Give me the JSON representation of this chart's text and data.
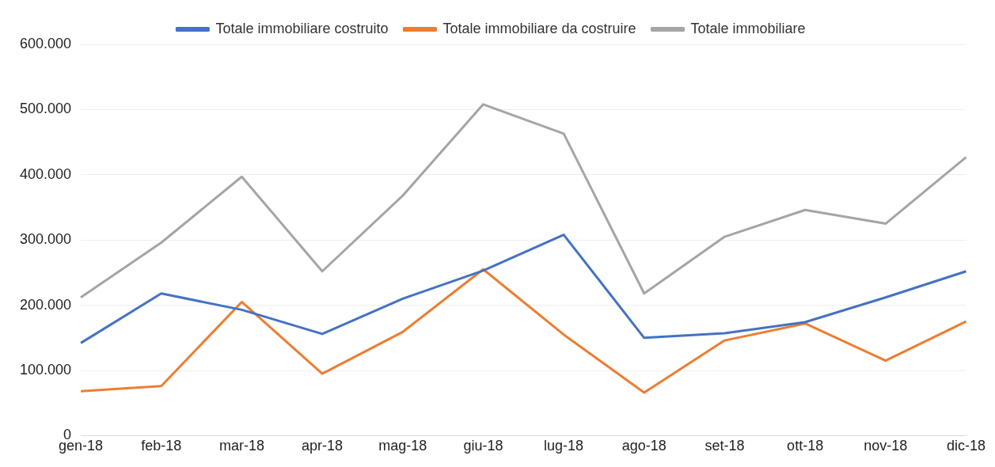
{
  "chart_data": {
    "type": "line",
    "categories": [
      "gen-18",
      "feb-18",
      "mar-18",
      "apr-18",
      "mag-18",
      "giu-18",
      "lug-18",
      "ago-18",
      "set-18",
      "ott-18",
      "nov-18",
      "dic-18"
    ],
    "series": [
      {
        "name": "Totale immobiliare costruito",
        "color": "#4472c4",
        "values": [
          142000,
          218000,
          193000,
          156000,
          210000,
          253000,
          308000,
          150000,
          157000,
          174000,
          212000,
          252000
        ]
      },
      {
        "name": "Totale immobiliare da costruire",
        "color": "#ed7d31",
        "values": [
          68000,
          76000,
          205000,
          95000,
          159000,
          255000,
          155000,
          66000,
          146000,
          172000,
          115000,
          175000
        ]
      },
      {
        "name": "Totale immobiliare",
        "color": "#a5a5a5",
        "values": [
          212000,
          296000,
          397000,
          252000,
          368000,
          508000,
          463000,
          218000,
          305000,
          346000,
          325000,
          427000
        ]
      }
    ],
    "ylim": [
      0,
      600000
    ],
    "yticks": [
      {
        "value": 0,
        "label": "0"
      },
      {
        "value": 100000,
        "label": "100.000"
      },
      {
        "value": 200000,
        "label": "200.000"
      },
      {
        "value": 300000,
        "label": "300.000"
      },
      {
        "value": 400000,
        "label": "400.000"
      },
      {
        "value": 500000,
        "label": "500.000"
      },
      {
        "value": 600000,
        "label": "600.000"
      }
    ],
    "grid": "y",
    "legend": "top",
    "marker": "none",
    "line_style": "solid"
  }
}
